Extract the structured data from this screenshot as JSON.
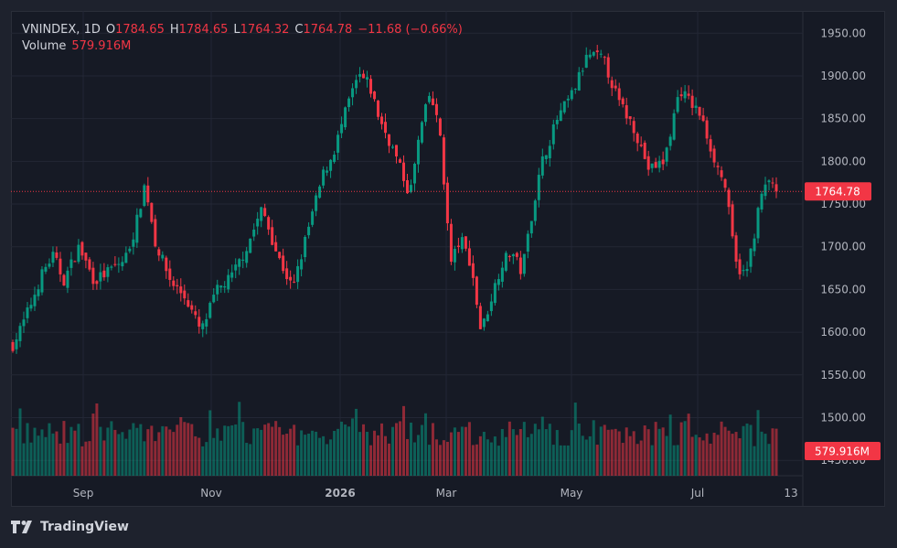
{
  "header": {
    "symbol": "VNINDEX, 1D",
    "o_label": "O",
    "o": "1784.65",
    "h_label": "H",
    "h": "1784.65",
    "l_label": "L",
    "l": "1764.32",
    "c_label": "C",
    "c": "1764.78",
    "change": "−11.68 (−0.66%)",
    "volume_label": "Volume",
    "volume": "579.916M"
  },
  "colors": {
    "up": "#089981",
    "down": "#f23645",
    "bg": "#161a25",
    "grid": "#232735",
    "axis_text": "#b2b5be"
  },
  "branding": {
    "logo_text": "TradingView",
    "logo_icon": "tradingview-logo-icon"
  },
  "chart_data": {
    "type": "candlestick",
    "title": "VNINDEX, 1D",
    "x_axis_labels": [
      "Sep",
      "Nov",
      "2026",
      "Mar",
      "May",
      "Jul",
      "13"
    ],
    "y_tick_labels": [
      "1950.00",
      "1900.00",
      "1850.00",
      "1800.00",
      "1750.00",
      "1700.00",
      "1650.00",
      "1600.00",
      "1550.00",
      "1500.00",
      "1450.00"
    ],
    "ylim": [
      1432,
      1976
    ],
    "last_price_label": "1764.78",
    "last_volume_label": "579.916M",
    "price_path": [
      {
        "d": 0,
        "v": 1585
      },
      {
        "d": 4,
        "v": 1610
      },
      {
        "d": 8,
        "v": 1640
      },
      {
        "d": 12,
        "v": 1672
      },
      {
        "d": 16,
        "v": 1690
      },
      {
        "d": 20,
        "v": 1660
      },
      {
        "d": 26,
        "v": 1700
      },
      {
        "d": 32,
        "v": 1660
      },
      {
        "d": 38,
        "v": 1672
      },
      {
        "d": 44,
        "v": 1685
      },
      {
        "d": 48,
        "v": 1720
      },
      {
        "d": 52,
        "v": 1775
      },
      {
        "d": 56,
        "v": 1705
      },
      {
        "d": 62,
        "v": 1660
      },
      {
        "d": 68,
        "v": 1640
      },
      {
        "d": 74,
        "v": 1600
      },
      {
        "d": 80,
        "v": 1648
      },
      {
        "d": 86,
        "v": 1665
      },
      {
        "d": 92,
        "v": 1700
      },
      {
        "d": 98,
        "v": 1745
      },
      {
        "d": 104,
        "v": 1690
      },
      {
        "d": 110,
        "v": 1650
      },
      {
        "d": 116,
        "v": 1720
      },
      {
        "d": 122,
        "v": 1785
      },
      {
        "d": 126,
        "v": 1810
      },
      {
        "d": 132,
        "v": 1870
      },
      {
        "d": 136,
        "v": 1900
      },
      {
        "d": 140,
        "v": 1890
      },
      {
        "d": 144,
        "v": 1850
      },
      {
        "d": 150,
        "v": 1810
      },
      {
        "d": 156,
        "v": 1760
      },
      {
        "d": 160,
        "v": 1835
      },
      {
        "d": 164,
        "v": 1880
      },
      {
        "d": 168,
        "v": 1830
      },
      {
        "d": 172,
        "v": 1680
      },
      {
        "d": 176,
        "v": 1710
      },
      {
        "d": 180,
        "v": 1680
      },
      {
        "d": 184,
        "v": 1600
      },
      {
        "d": 188,
        "v": 1640
      },
      {
        "d": 192,
        "v": 1680
      },
      {
        "d": 196,
        "v": 1695
      },
      {
        "d": 200,
        "v": 1670
      },
      {
        "d": 204,
        "v": 1740
      },
      {
        "d": 208,
        "v": 1800
      },
      {
        "d": 214,
        "v": 1850
      },
      {
        "d": 220,
        "v": 1880
      },
      {
        "d": 226,
        "v": 1925
      },
      {
        "d": 232,
        "v": 1920
      },
      {
        "d": 238,
        "v": 1870
      },
      {
        "d": 244,
        "v": 1840
      },
      {
        "d": 250,
        "v": 1790
      },
      {
        "d": 256,
        "v": 1800
      },
      {
        "d": 262,
        "v": 1885
      },
      {
        "d": 266,
        "v": 1870
      },
      {
        "d": 270,
        "v": 1855
      },
      {
        "d": 276,
        "v": 1800
      },
      {
        "d": 280,
        "v": 1770
      },
      {
        "d": 284,
        "v": 1680
      },
      {
        "d": 288,
        "v": 1665
      },
      {
        "d": 291,
        "v": 1710
      },
      {
        "d": 294,
        "v": 1760
      },
      {
        "d": 298,
        "v": 1780
      },
      {
        "d": 300,
        "v": 1764.78
      }
    ]
  }
}
